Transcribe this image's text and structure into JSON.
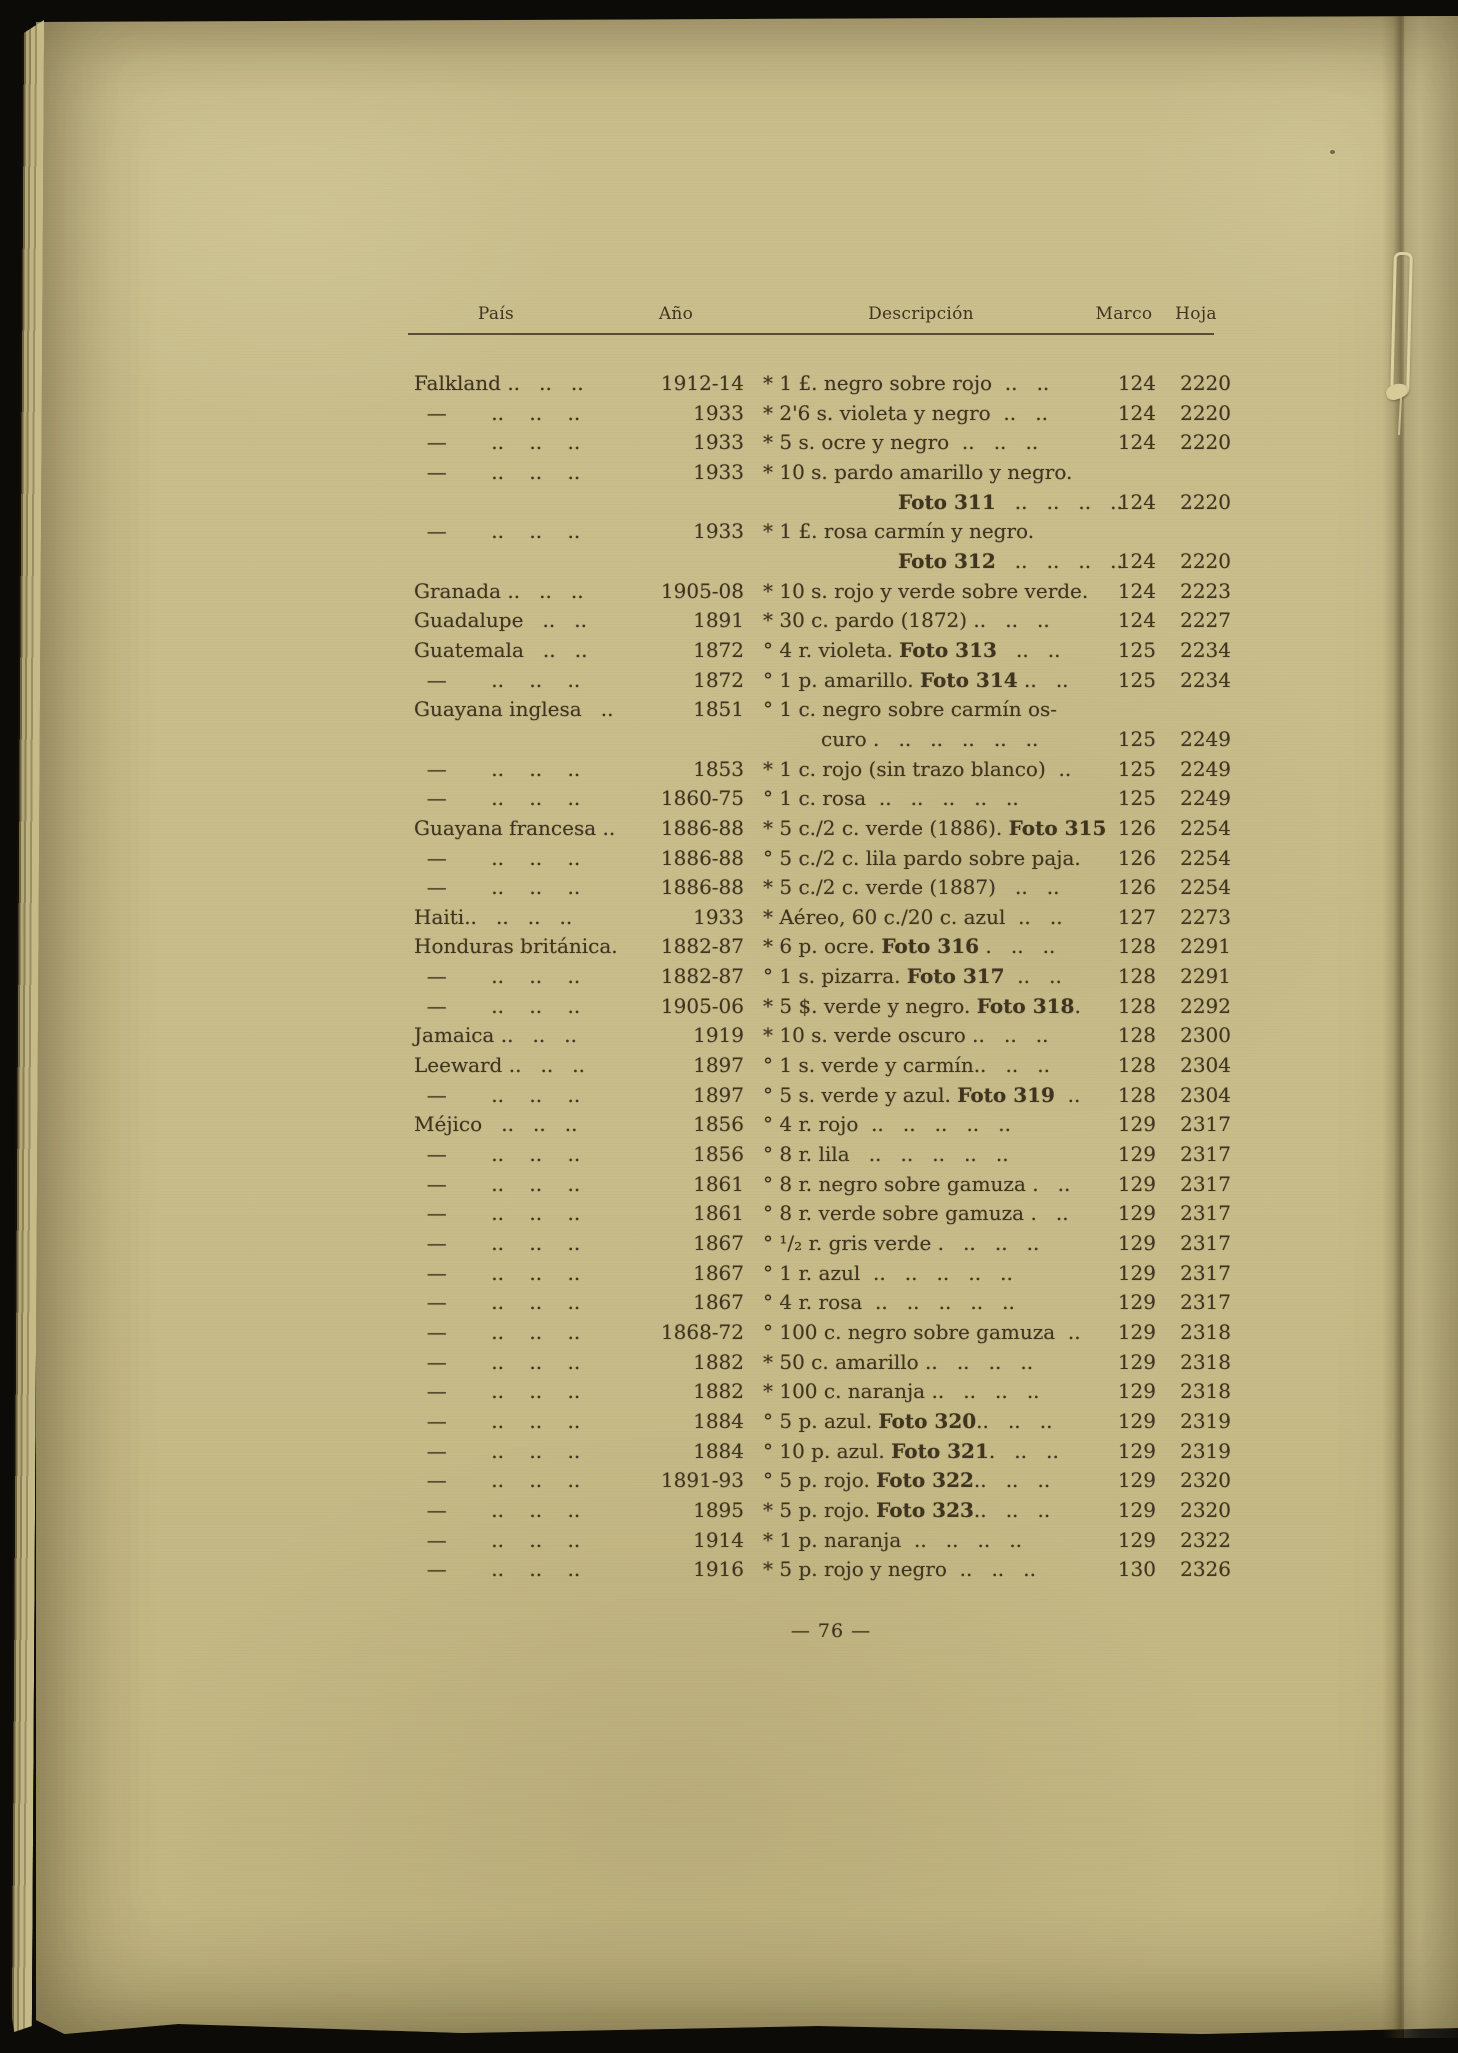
{
  "page": {
    "header": {
      "pais": "País",
      "ano": "Año",
      "descripcion": "Descripción",
      "marco": "Marco",
      "hoja": "Hoja"
    },
    "rows": [
      {
        "pais": "Falkland ..   ..   ..",
        "ano": "1912-14",
        "desc": "* 1 £. negro sobre rojo  ..   ..",
        "marco": "124",
        "hoja": "2220"
      },
      {
        "pais": "  —       ..    ..    ..",
        "ano": "1933",
        "desc": "* 2'6 s. violeta y negro  ..   ..",
        "marco": "124",
        "hoja": "2220"
      },
      {
        "pais": "  —       ..    ..    ..",
        "ano": "1933",
        "desc": "* 5 s. ocre y negro  ..   ..   ..",
        "marco": "124",
        "hoja": "2220"
      },
      {
        "pais": "  —       ..    ..    ..",
        "ano": "1933",
        "desc": "* 10 s. pardo amarillo y negro.",
        "desc2": "Foto 311   ..   ..   ..   ..",
        "marco": "124",
        "hoja": "2220"
      },
      {
        "pais": "  —       ..    ..    ..",
        "ano": "1933",
        "desc": "* 1 £. rosa carmín y negro.",
        "desc2": "Foto 312   ..   ..   ..   ..",
        "marco": "124",
        "hoja": "2220"
      },
      {
        "pais": "Granada ..   ..   ..",
        "ano": "1905-08",
        "desc": "* 10 s. rojo y verde sobre verde.",
        "marco": "124",
        "hoja": "2223"
      },
      {
        "pais": "Guadalupe   ..   ..",
        "ano": "1891",
        "desc": "* 30 c. pardo (1872) ..   ..   ..",
        "marco": "124",
        "hoja": "2227"
      },
      {
        "pais": "Guatemala   ..   ..",
        "ano": "1872",
        "desc": "° 4 r. violeta. Foto 313   ..   ..",
        "marco": "125",
        "hoja": "2234"
      },
      {
        "pais": "  —       ..    ..    ..",
        "ano": "1872",
        "desc": "° 1 p. amarillo. Foto 314 ..   ..",
        "marco": "125",
        "hoja": "2234"
      },
      {
        "pais": "Guayana inglesa   ..",
        "ano": "1851",
        "desc": "° 1 c. negro sobre carmín os-",
        "desc2": "curo .   ..   ..   ..   ..   ..",
        "marco": "125",
        "hoja": "2249"
      },
      {
        "pais": "  —       ..    ..    ..",
        "ano": "1853",
        "desc": "* 1 c. rojo (sin trazo blanco)  ..",
        "marco": "125",
        "hoja": "2249"
      },
      {
        "pais": "  —       ..    ..    ..",
        "ano": "1860-75",
        "desc": "° 1 c. rosa  ..   ..   ..   ..   ..",
        "marco": "125",
        "hoja": "2249"
      },
      {
        "pais": "Guayana francesa ..",
        "ano": "1886-88",
        "desc": "* 5 c./2 c. verde (1886). Foto 315",
        "marco": "126",
        "hoja": "2254"
      },
      {
        "pais": "  —       ..    ..    ..",
        "ano": "1886-88",
        "desc": "° 5 c./2 c. lila pardo sobre paja.",
        "marco": "126",
        "hoja": "2254"
      },
      {
        "pais": "  —       ..    ..    ..",
        "ano": "1886-88",
        "desc": "* 5 c./2 c. verde (1887)   ..   ..",
        "marco": "126",
        "hoja": "2254"
      },
      {
        "pais": "Haiti..   ..   ..   ..",
        "ano": "1933",
        "desc": "* Aéreo, 60 c./20 c. azul  ..   ..",
        "marco": "127",
        "hoja": "2273"
      },
      {
        "pais": "Honduras británica.",
        "ano": "1882-87",
        "desc": "* 6 p. ocre. Foto 316 .   ..   ..",
        "marco": "128",
        "hoja": "2291"
      },
      {
        "pais": "  —       ..    ..    ..",
        "ano": "1882-87",
        "desc": "° 1 s. pizarra. Foto 317  ..   ..",
        "marco": "128",
        "hoja": "2291"
      },
      {
        "pais": "  —       ..    ..    ..",
        "ano": "1905-06",
        "desc": "* 5 $. verde y negro. Foto 318.",
        "marco": "128",
        "hoja": "2292"
      },
      {
        "pais": "Jamaica ..   ..   ..",
        "ano": "1919",
        "desc": "* 10 s. verde oscuro ..   ..   ..",
        "marco": "128",
        "hoja": "2300"
      },
      {
        "pais": "Leeward ..   ..   ..",
        "ano": "1897",
        "desc": "° 1 s. verde y carmín..   ..   ..",
        "marco": "128",
        "hoja": "2304"
      },
      {
        "pais": "  —       ..    ..    ..",
        "ano": "1897",
        "desc": "° 5 s. verde y azul. Foto 319  ..",
        "marco": "128",
        "hoja": "2304"
      },
      {
        "pais": "Méjico   ..   ..   ..",
        "ano": "1856",
        "desc": "° 4 r. rojo  ..   ..   ..   ..   ..",
        "marco": "129",
        "hoja": "2317"
      },
      {
        "pais": "  —       ..    ..    ..",
        "ano": "1856",
        "desc": "° 8 r. lila   ..   ..   ..   ..   ..",
        "marco": "129",
        "hoja": "2317"
      },
      {
        "pais": "  —       ..    ..    ..",
        "ano": "1861",
        "desc": "° 8 r. negro sobre gamuza .   ..",
        "marco": "129",
        "hoja": "2317"
      },
      {
        "pais": "  —       ..    ..    ..",
        "ano": "1861",
        "desc": "° 8 r. verde sobre gamuza .   ..",
        "marco": "129",
        "hoja": "2317"
      },
      {
        "pais": "  —       ..    ..    ..",
        "ano": "1867",
        "desc": "° ¹/₂ r. gris verde .   ..   ..   ..",
        "marco": "129",
        "hoja": "2317"
      },
      {
        "pais": "  —       ..    ..    ..",
        "ano": "1867",
        "desc": "° 1 r. azul  ..   ..   ..   ..   ..",
        "marco": "129",
        "hoja": "2317"
      },
      {
        "pais": "  —       ..    ..    ..",
        "ano": "1867",
        "desc": "° 4 r. rosa  ..   ..   ..   ..   ..",
        "marco": "129",
        "hoja": "2317"
      },
      {
        "pais": "  —       ..    ..    ..",
        "ano": "1868-72",
        "desc": "° 100 c. negro sobre gamuza  ..",
        "marco": "129",
        "hoja": "2318"
      },
      {
        "pais": "  —       ..    ..    ..",
        "ano": "1882",
        "desc": "* 50 c. amarillo ..   ..   ..   ..",
        "marco": "129",
        "hoja": "2318"
      },
      {
        "pais": "  —       ..    ..    ..",
        "ano": "1882",
        "desc": "* 100 c. naranja ..   ..   ..   ..",
        "marco": "129",
        "hoja": "2318"
      },
      {
        "pais": "  —       ..    ..    ..",
        "ano": "1884",
        "desc": "° 5 p. azul. Foto 320..   ..   ..",
        "marco": "129",
        "hoja": "2319"
      },
      {
        "pais": "  —       ..    ..    ..",
        "ano": "1884",
        "desc": "° 10 p. azul. Foto 321.   ..   ..",
        "marco": "129",
        "hoja": "2319"
      },
      {
        "pais": "  —       ..    ..    ..",
        "ano": "1891-93",
        "desc": "° 5 p. rojo. Foto 322..   ..   ..",
        "marco": "129",
        "hoja": "2320"
      },
      {
        "pais": "  —       ..    ..    ..",
        "ano": "1895",
        "desc": "* 5 p. rojo. Foto 323..   ..   ..",
        "marco": "129",
        "hoja": "2320"
      },
      {
        "pais": "  —       ..    ..    ..",
        "ano": "1914",
        "desc": "* 1 p. naranja  ..   ..   ..   ..",
        "marco": "129",
        "hoja": "2322"
      },
      {
        "pais": "  —       ..    ..    ..",
        "ano": "1916",
        "desc": "* 5 p. rojo y negro  ..   ..   ..",
        "marco": "130",
        "hoja": "2326"
      }
    ],
    "page_number": "— 76 —"
  },
  "colors": {
    "paper": "#c8bc8a",
    "ink": "#3f3420",
    "background": "#0d0b07",
    "thread": "#dcd1a2"
  }
}
